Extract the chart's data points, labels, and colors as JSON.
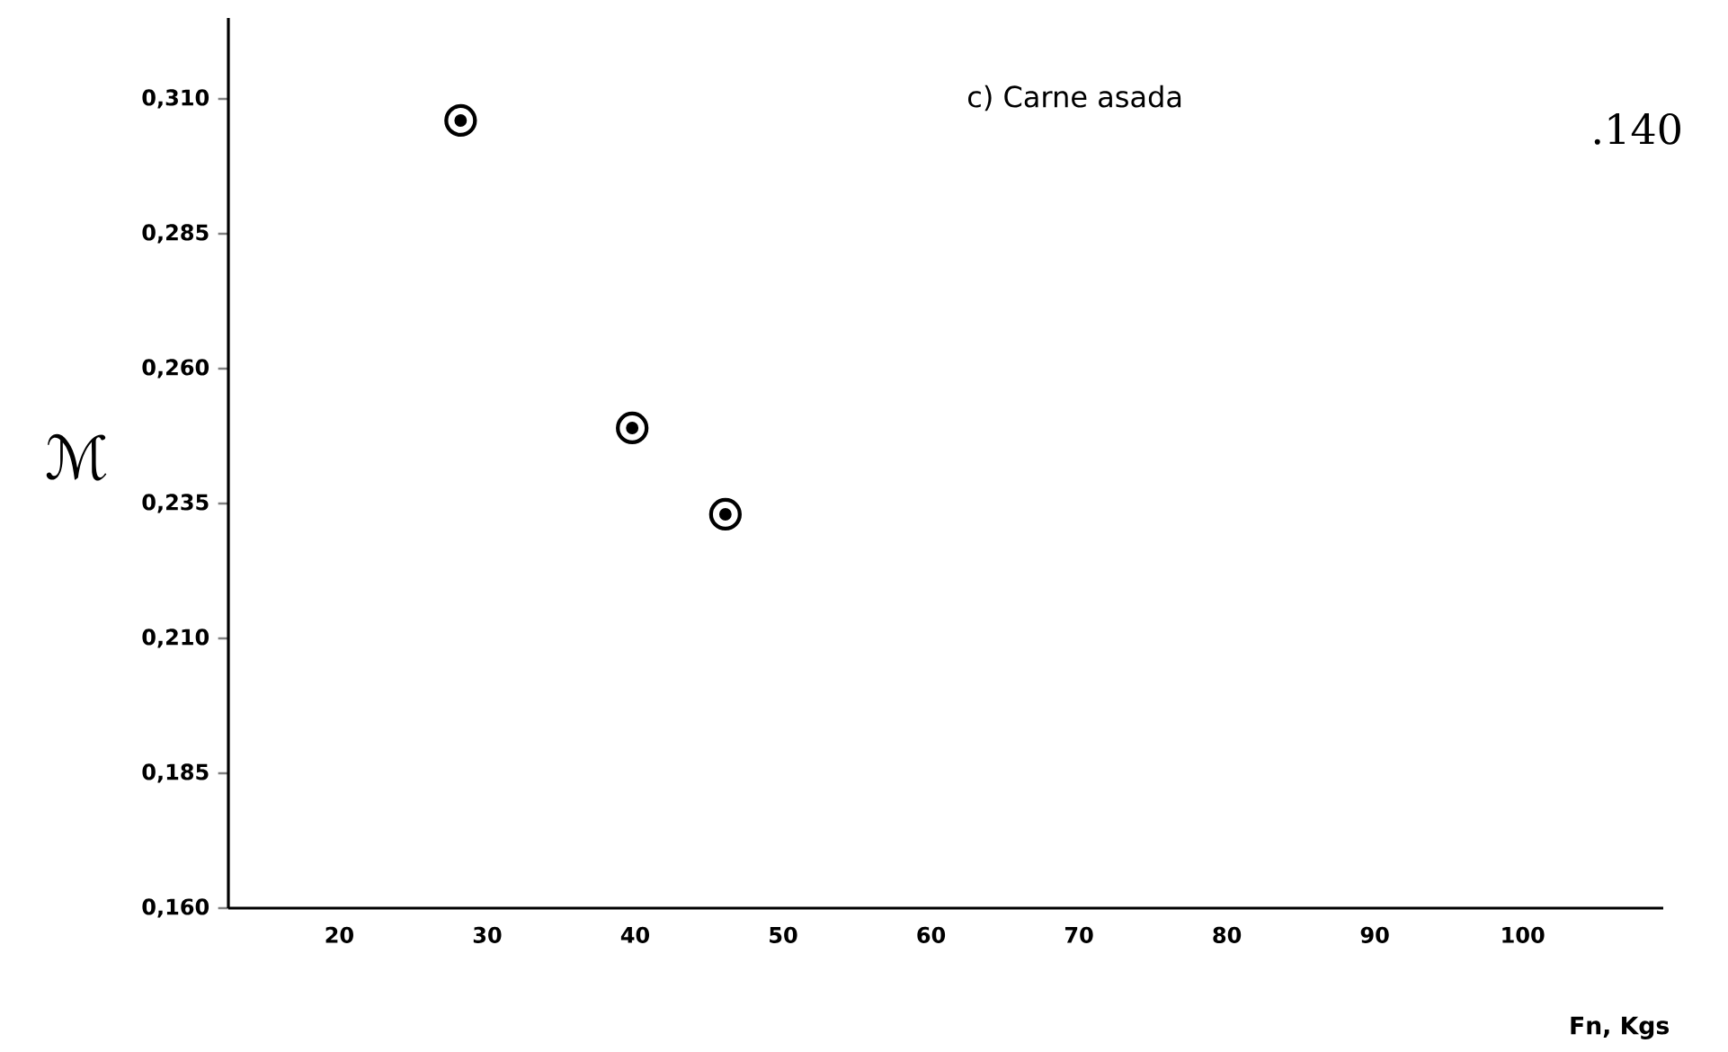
{
  "chart_data": {
    "type": "scatter",
    "title": "c) Carne asada",
    "xlabel": "Fn, Kgs",
    "ylabel": "ℳ",
    "annotations": [
      ".140"
    ],
    "x": [
      28.2,
      39.8,
      46.1
    ],
    "series": [
      {
        "color": "#000000",
        "values": [
          0.306,
          0.249,
          0.233
        ]
      }
    ],
    "marker": "circle",
    "grid": false,
    "xlim": [
      12.5,
      109.5
    ],
    "xticks": [
      20,
      30,
      40,
      50,
      60,
      70,
      80,
      90,
      100
    ],
    "ylim": [
      0.16,
      0.325
    ],
    "yticks": [
      {
        "value": 0.16,
        "label": "0,160"
      },
      {
        "value": 0.185,
        "label": "0,185"
      },
      {
        "value": 0.21,
        "label": "0,210"
      },
      {
        "value": 0.235,
        "label": "0,235"
      },
      {
        "value": 0.26,
        "label": "0,260"
      },
      {
        "value": 0.285,
        "label": "0,285"
      },
      {
        "value": 0.31,
        "label": "0,310"
      }
    ]
  }
}
